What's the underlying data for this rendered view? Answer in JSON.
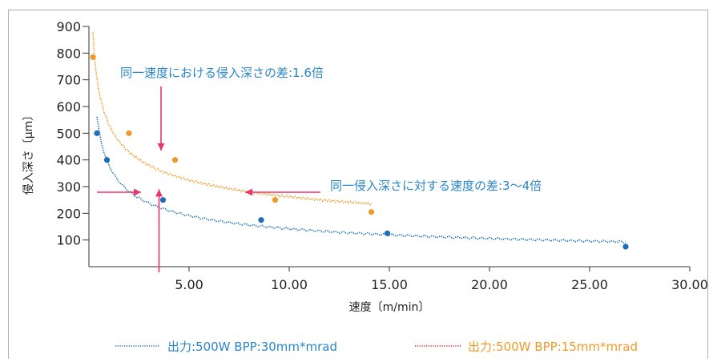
{
  "chart_data": {
    "type": "line",
    "xlabel": "速度〔m/min〕",
    "ylabel": "侵入深さ〔μm〕",
    "xlim": [
      0,
      30
    ],
    "ylim": [
      0,
      900
    ],
    "x_ticks": [
      "5.00",
      "10.00",
      "15.00",
      "20.00",
      "25.00",
      "30.00"
    ],
    "y_ticks": [
      "100",
      "200",
      "300",
      "400",
      "500",
      "600",
      "700",
      "800",
      "900"
    ],
    "series": [
      {
        "name": "出力:500W BPP:30mm*mrad",
        "color": "#1c6fb5",
        "points": [
          [
            0.4,
            500
          ],
          [
            0.9,
            400
          ],
          [
            3.7,
            250
          ],
          [
            8.6,
            175
          ],
          [
            14.9,
            125
          ],
          [
            26.8,
            75
          ]
        ]
      },
      {
        "name": "出力:500W BPP:15mm*mrad",
        "color": "#ef9a28",
        "points": [
          [
            0.2,
            785
          ],
          [
            2.0,
            500
          ],
          [
            4.3,
            400
          ],
          [
            9.3,
            250
          ],
          [
            14.1,
            205
          ]
        ]
      }
    ],
    "annotations": [
      "同一速度における侵入深さの差:1.6倍",
      "同一侵入深さに対する速度の差:3〜4倍"
    ]
  }
}
